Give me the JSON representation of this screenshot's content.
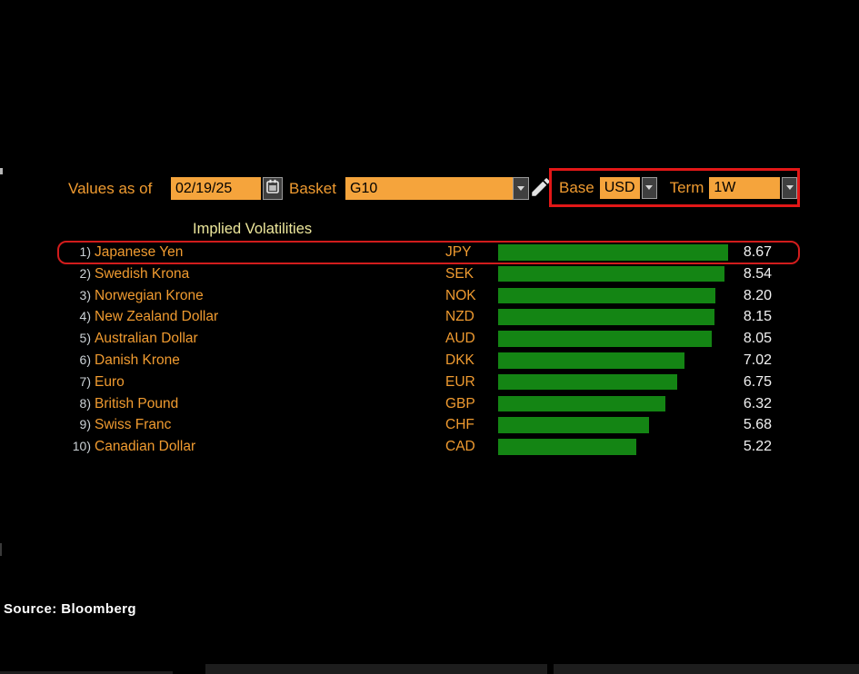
{
  "toolbar": {
    "values_as_of_label": "Values as of",
    "date_value": "02/19/25",
    "basket_label": "Basket",
    "basket_value": "G10",
    "base_label": "Base",
    "base_value": "USD",
    "term_label": "Term",
    "term_value": "1W"
  },
  "chart_data": {
    "type": "bar",
    "orientation": "horizontal",
    "title": "Implied Volatilities",
    "categories": [
      "Japanese Yen",
      "Swedish Krona",
      "Norwegian Krone",
      "New Zealand Dollar",
      "Australian Dollar",
      "Danish Krone",
      "Euro",
      "British Pound",
      "Swiss Franc",
      "Canadian Dollar"
    ],
    "tickers": [
      "JPY",
      "SEK",
      "NOK",
      "NZD",
      "AUD",
      "DKK",
      "EUR",
      "GBP",
      "CHF",
      "CAD"
    ],
    "ranks": [
      "1)",
      "2)",
      "3)",
      "4)",
      "5)",
      "6)",
      "7)",
      "8)",
      "9)",
      "10)"
    ],
    "values": [
      8.67,
      8.54,
      8.2,
      8.15,
      8.05,
      7.02,
      6.75,
      6.32,
      5.68,
      5.22
    ],
    "value_labels": [
      "8.67",
      "8.54",
      "8.20",
      "8.15",
      "8.05",
      "7.02",
      "6.75",
      "6.32",
      "5.68",
      "5.22"
    ],
    "xlim": [
      0,
      8.7
    ],
    "grid": "off",
    "legend": "none",
    "bar_color": "#148514",
    "highlighted_index": 0,
    "highlight_annotation_color": "#d11c1c"
  },
  "footer": {
    "source": "Source: Bloomberg"
  },
  "colors": {
    "background": "#000000",
    "orange_text": "#f09b30",
    "orange_input_bg": "#f5a43c",
    "bar_green": "#148514",
    "annotation_red": "#e21717",
    "title_yellow": "#eee89c",
    "rank_gray": "#ccd2d6",
    "value_white": "#f2f2f2"
  }
}
